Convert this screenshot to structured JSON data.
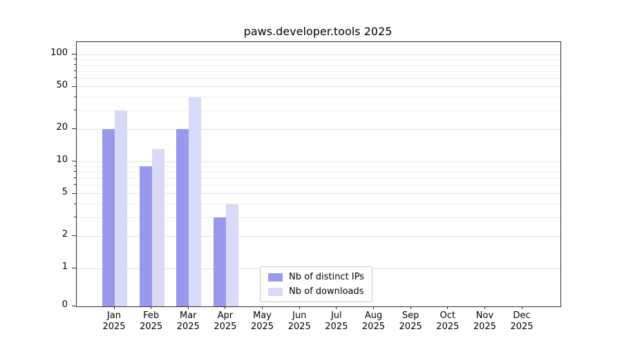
{
  "chart_data": {
    "type": "bar",
    "title": "paws.developer.tools 2025",
    "categories": [
      "Jan",
      "Feb",
      "Mar",
      "Apr",
      "May",
      "Jun",
      "Jul",
      "Aug",
      "Sep",
      "Oct",
      "Nov",
      "Dec"
    ],
    "year": "2025",
    "series": [
      {
        "name": "Nb of distinct IPs",
        "color": "#9999ec",
        "values": [
          20,
          9,
          20,
          3,
          0,
          0,
          0,
          0,
          0,
          0,
          0,
          0
        ]
      },
      {
        "name": "Nb of downloads",
        "color": "#d9d9f8",
        "values": [
          30,
          13,
          40,
          4,
          0,
          0,
          0,
          0,
          0,
          0,
          0,
          0
        ]
      }
    ],
    "y_ticks": [
      0,
      1,
      2,
      5,
      10,
      20,
      50,
      100
    ],
    "y_minor_gridlines": [
      3,
      4,
      6,
      7,
      8,
      9,
      30,
      40,
      60,
      70,
      80,
      90
    ],
    "scale": "symlog",
    "ylim": [
      0,
      130
    ],
    "grid": true,
    "legend_position": "lower center"
  }
}
